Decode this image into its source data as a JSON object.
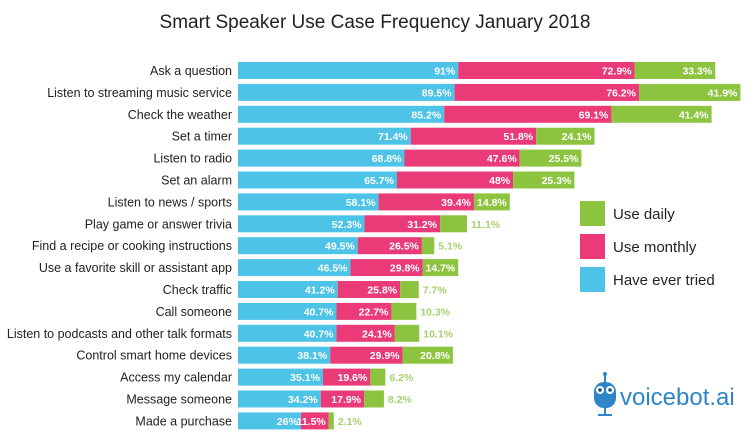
{
  "chart_data": {
    "type": "bar",
    "orientation": "horizontal",
    "stacked": true,
    "title": "Smart Speaker Use Case Frequency January 2018",
    "categories": [
      "Ask a question",
      "Listen to streaming music service",
      "Check the weather",
      "Set a timer",
      "Listen to radio",
      "Set an alarm",
      "Listen to news / sports",
      "Play game or answer trivia",
      "Find a recipe or cooking instructions",
      "Use a favorite skill or assistant app",
      "Check traffic",
      "Call someone",
      "Listen to podcasts and other talk formats",
      "Control smart home devices",
      "Access my calendar",
      "Message someone",
      "Made a purchase"
    ],
    "series": [
      {
        "name": "Have ever tried",
        "color": "#4ec3e8",
        "values": [
          91,
          89.5,
          85.2,
          71.4,
          68.8,
          65.7,
          58.1,
          52.3,
          49.5,
          46.5,
          41.2,
          40.7,
          40.7,
          38.1,
          35.1,
          34.2,
          26
        ],
        "labels": [
          "91%",
          "89.5%",
          "85.2%",
          "71.4%",
          "68.8%",
          "65.7%",
          "58.1%",
          "52.3%",
          "49.5%",
          "46.5%",
          "41.2%",
          "40.7%",
          "40.7%",
          "38.1%",
          "35.1%",
          "34.2%",
          "26%"
        ]
      },
      {
        "name": "Use monthly",
        "color": "#ea3b78",
        "values": [
          72.9,
          76.2,
          69.1,
          51.8,
          47.6,
          48,
          39.4,
          31.2,
          26.5,
          29.8,
          25.8,
          22.7,
          24.1,
          29.9,
          19.6,
          17.9,
          11.5
        ],
        "labels": [
          "72.9%",
          "76.2%",
          "69.1%",
          "51.8%",
          "47.6%",
          "48%",
          "39.4%",
          "31.2%",
          "26.5%",
          "29.8%",
          "25.8%",
          "22.7%",
          "24.1%",
          "29.9%",
          "19.6%",
          "17.9%",
          "11.5%"
        ]
      },
      {
        "name": "Use daily",
        "color": "#8cc43f",
        "values": [
          33.3,
          41.9,
          41.4,
          24.1,
          25.5,
          25.3,
          14.8,
          11.1,
          5.1,
          14.7,
          7.7,
          10.3,
          10.1,
          20.8,
          6.2,
          8.2,
          2.1
        ],
        "labels": [
          "33.3%",
          "41.9%",
          "41.4%",
          "24.1%",
          "25.5%",
          "25.3%",
          "14.8%",
          "11.1%",
          "5.1%",
          "14.7%",
          "7.7%",
          "10.3%",
          "10.1%",
          "20.8%",
          "6.2%",
          "8.2%",
          "2.1%"
        ]
      }
    ],
    "legend": {
      "position": "right",
      "order": [
        "Use daily",
        "Use monthly",
        "Have ever tried"
      ]
    },
    "grid": false
  },
  "logo": {
    "text": "voicebot.ai"
  }
}
